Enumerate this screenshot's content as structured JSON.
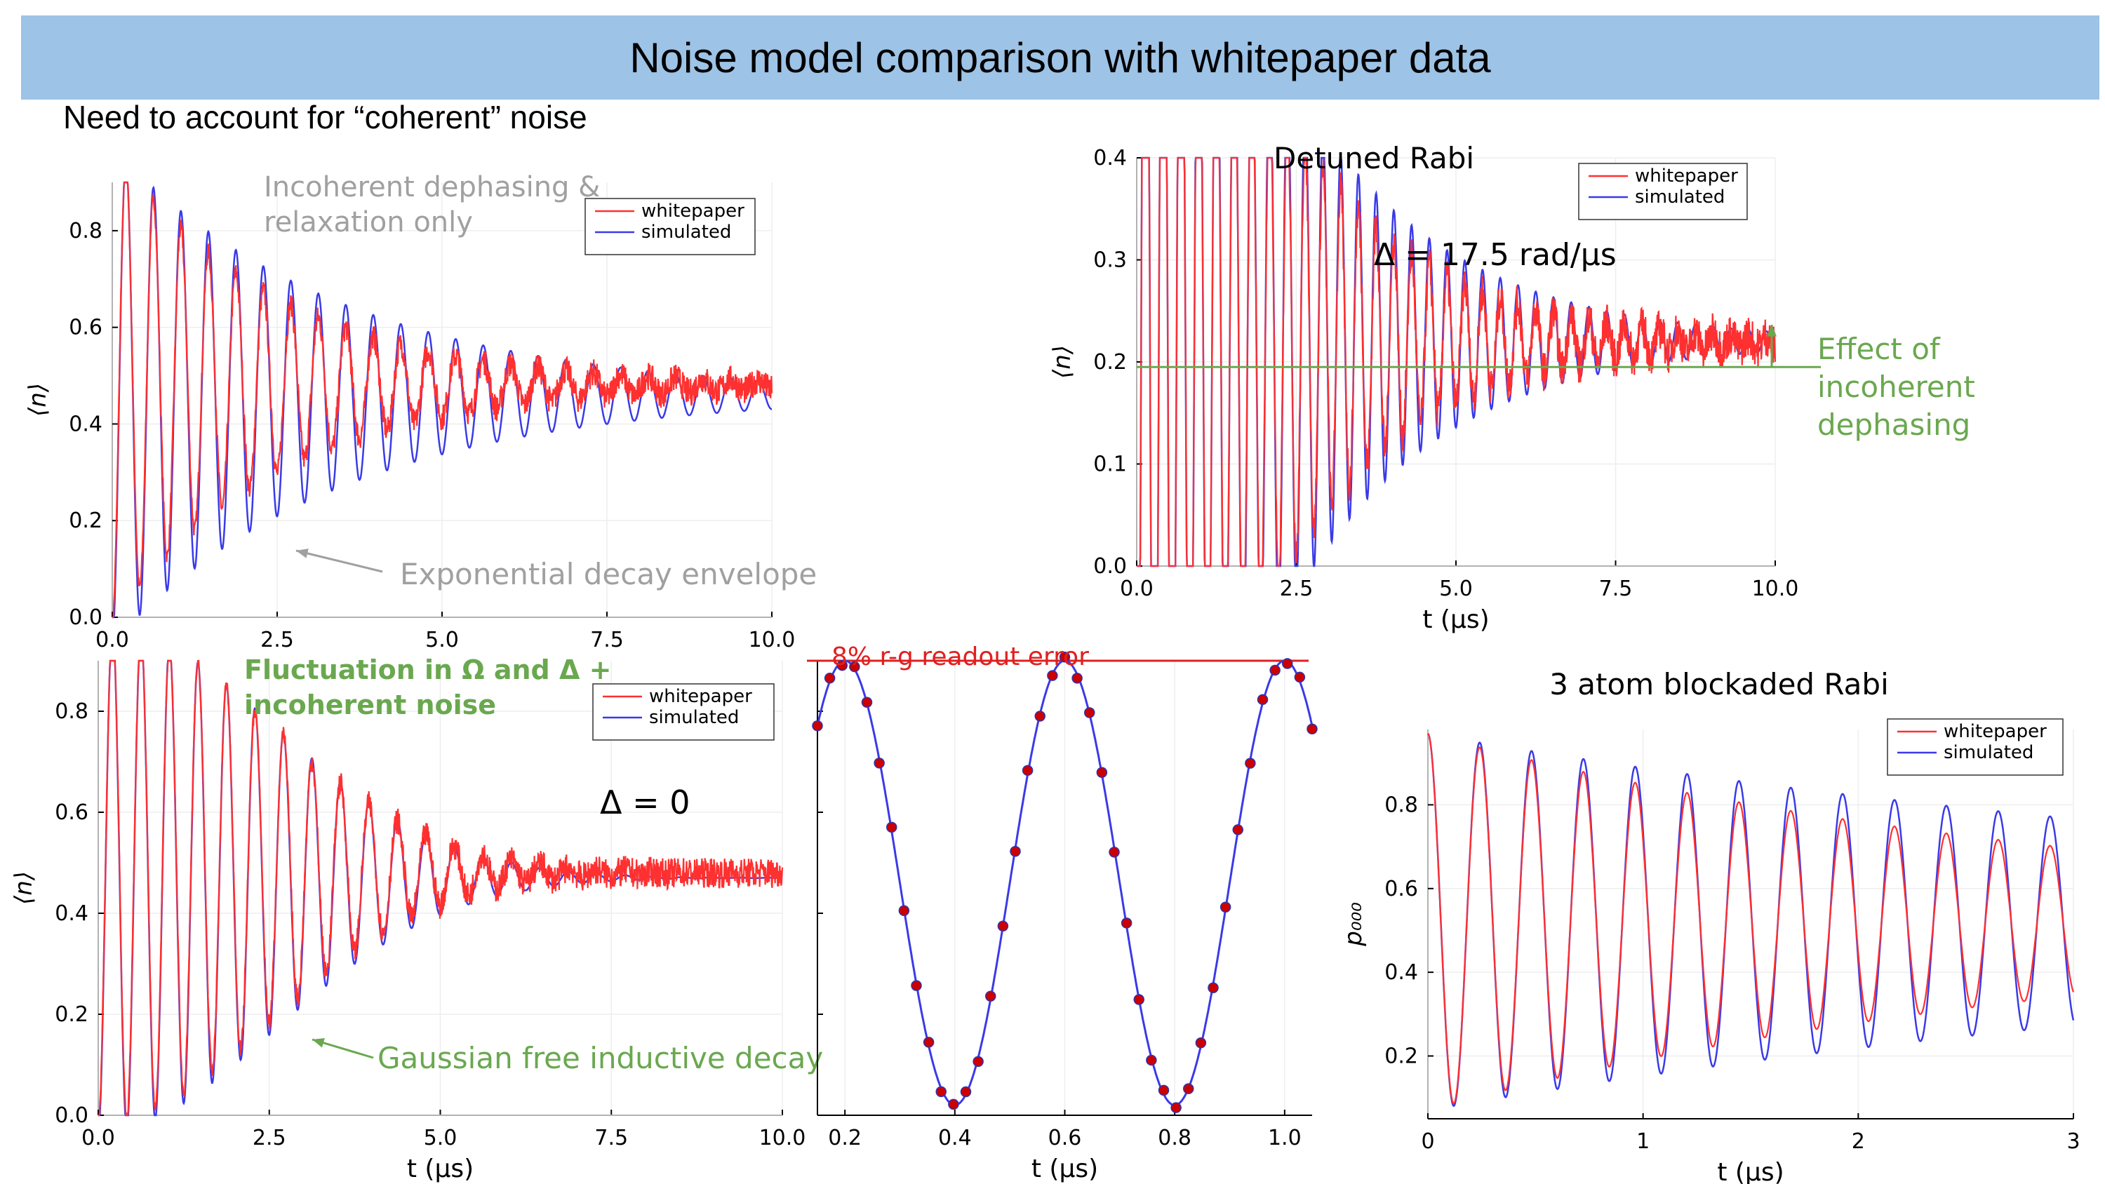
{
  "slide": {
    "title": "Noise model comparison with whitepaper data",
    "subtitle": "Need to account for “coherent” noise"
  },
  "colors": {
    "whitepaper": "#ff3030",
    "simulated": "#3a3ae8",
    "accent_green": "#6aa84f",
    "readout_red": "#e02020",
    "gray_annotation": "#a0a0a0"
  },
  "chart_data": [
    {
      "id": "top-left",
      "type": "line",
      "xlim": [
        0,
        10
      ],
      "ylim": [
        0,
        0.9
      ],
      "xticks": [
        "0.0",
        "2.5",
        "5.0",
        "7.5",
        "10.0"
      ],
      "yticks": [
        "0.0",
        "0.2",
        "0.4",
        "0.6",
        "0.8"
      ],
      "xlabel": "",
      "ylabel": "⟨n⟩",
      "legend": [
        "whitepaper",
        "simulated"
      ],
      "annotations": [
        "Incoherent dephasing &",
        "relaxation only",
        "Exponential decay envelope"
      ],
      "series": [
        {
          "name": "whitepaper",
          "model": "exp-decay",
          "freq_per_us": 2.4,
          "decay_time_us": 2.5,
          "baseline": 0.48,
          "noise": 0.03
        },
        {
          "name": "simulated",
          "model": "exp-decay",
          "freq_per_us": 2.4,
          "decay_time_us": 3.5,
          "baseline": 0.46,
          "noise": 0
        }
      ]
    },
    {
      "id": "top-right",
      "type": "line",
      "title": "Detuned Rabi",
      "xlim": [
        0,
        10
      ],
      "ylim": [
        0,
        0.4
      ],
      "xticks": [
        "0.0",
        "2.5",
        "5.0",
        "7.5",
        "10.0"
      ],
      "yticks": [
        "0.0",
        "0.1",
        "0.2",
        "0.3",
        "0.4"
      ],
      "xlabel": "t (μs)",
      "ylabel": "⟨n⟩",
      "legend": [
        "whitepaper",
        "simulated"
      ],
      "annotations": [
        "Δ = 17.5 rad/μs",
        "Effect of",
        "incoherent",
        "dephasing"
      ],
      "reference_line": 0.195,
      "series": [
        {
          "name": "whitepaper",
          "freq_per_us": 3.6,
          "decay_time_us": 2.0,
          "baseline": 0.22,
          "noise": 0.02
        },
        {
          "name": "simulated",
          "freq_per_us": 3.6,
          "decay_time_us": 2.3,
          "baseline": 0.22,
          "noise": 0
        }
      ]
    },
    {
      "id": "bottom-left",
      "type": "line",
      "xlim": [
        0,
        10
      ],
      "ylim": [
        0,
        0.9
      ],
      "xticks": [
        "0.0",
        "2.5",
        "5.0",
        "7.5",
        "10.0"
      ],
      "yticks": [
        "0.0",
        "0.2",
        "0.4",
        "0.6",
        "0.8"
      ],
      "xlabel": "t (μs)",
      "ylabel": "⟨n⟩",
      "legend": [
        "whitepaper",
        "simulated"
      ],
      "annotations": [
        "Fluctuation in Ω and Δ +",
        "incoherent noise",
        "Δ = 0",
        "Gaussian free inductive decay"
      ],
      "series": [
        {
          "name": "whitepaper",
          "model": "gaussian-decay",
          "freq_per_us": 2.4,
          "decay_time_us": 3.5,
          "baseline": 0.48,
          "noise": 0.03
        },
        {
          "name": "simulated",
          "model": "gaussian-decay",
          "freq_per_us": 2.4,
          "decay_time_us": 3.6,
          "baseline": 0.47,
          "noise": 0
        }
      ]
    },
    {
      "id": "bottom-middle",
      "type": "line",
      "xlim": [
        0.15,
        1.05
      ],
      "ylim": [
        0,
        0.9
      ],
      "xticks": [
        "0.2",
        "0.4",
        "0.6",
        "0.8",
        "1.0"
      ],
      "xlabel": "t (μs)",
      "annotations": [
        "8% r-g readout error"
      ],
      "reference_line": 0.9,
      "series": [
        {
          "name": "simulated",
          "freq_per_us": 2.5,
          "amplitude": 0.44,
          "baseline": 0.46
        },
        {
          "name": "whitepaper-points",
          "x_start": 0.15,
          "x_step": 0.0225,
          "count": 41
        }
      ]
    },
    {
      "id": "bottom-right",
      "type": "line",
      "title": "3 atom blockaded Rabi",
      "xlim": [
        0,
        3
      ],
      "ylim": [
        0.05,
        0.98
      ],
      "xticks": [
        "0",
        "1",
        "2",
        "3"
      ],
      "yticks": [
        "0.2",
        "0.4",
        "0.6",
        "0.8"
      ],
      "xlabel": "t (μs)",
      "ylabel": "p₀₀₀",
      "legend": [
        "whitepaper",
        "simulated"
      ],
      "series": [
        {
          "name": "whitepaper",
          "freq_per_us": 4.15,
          "decay_time_us": 3.2,
          "baseline": 0.52
        },
        {
          "name": "simulated",
          "freq_per_us": 4.15,
          "decay_time_us": 5.0,
          "baseline": 0.52
        }
      ]
    }
  ]
}
